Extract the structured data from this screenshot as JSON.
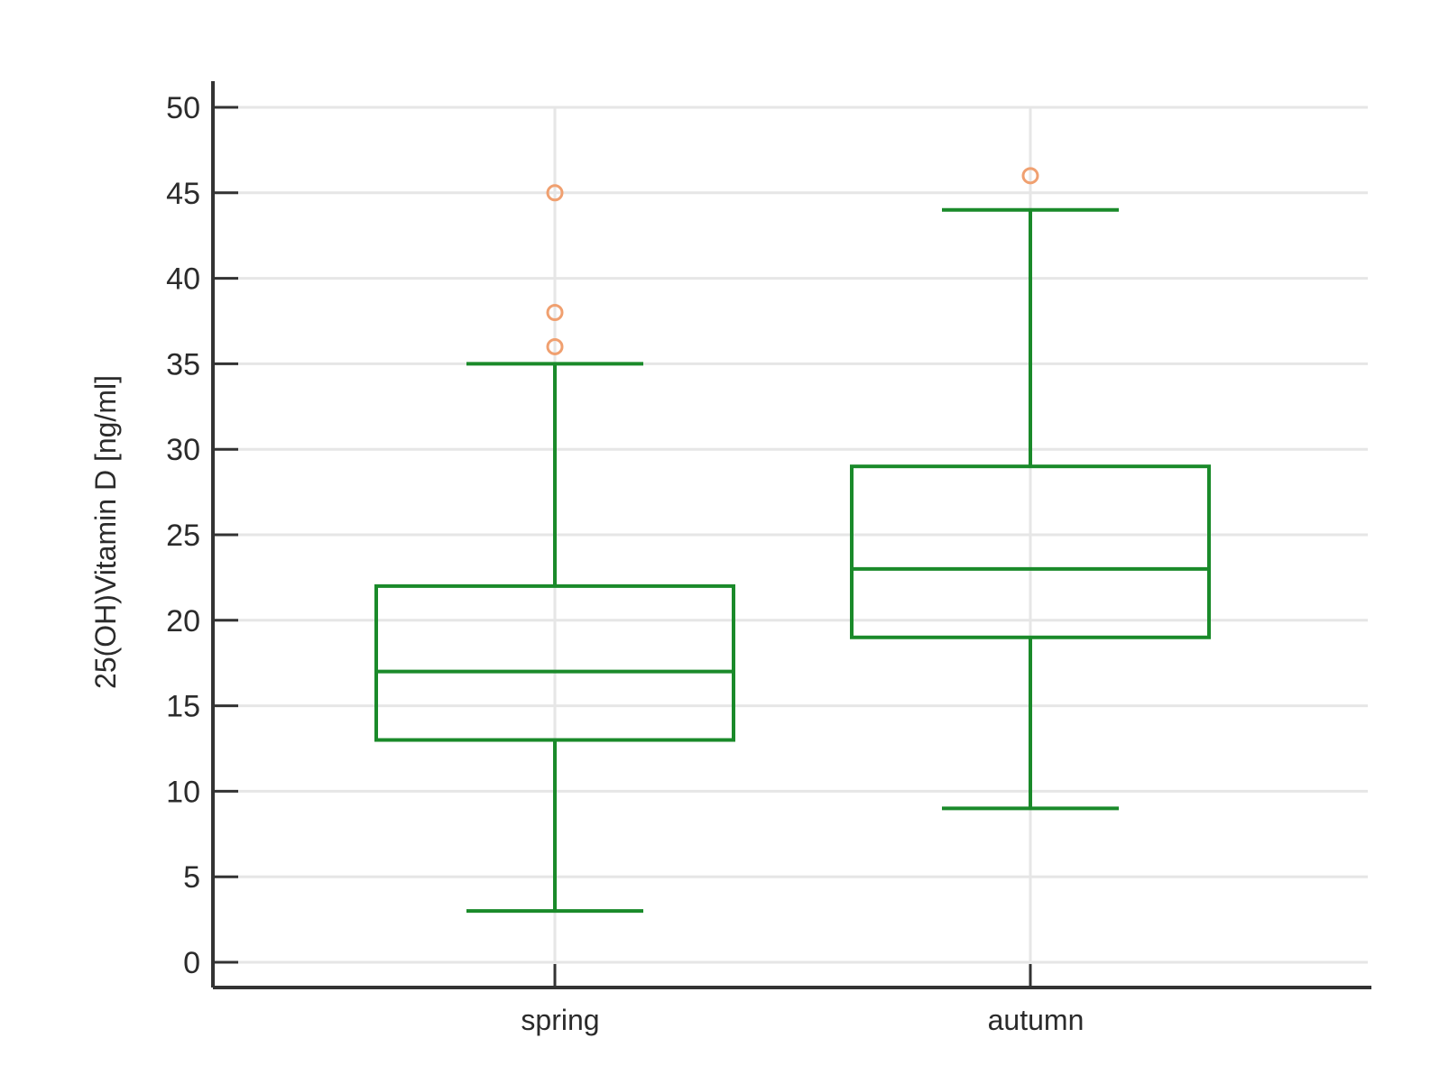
{
  "chart_data": {
    "type": "box",
    "ylabel": "25(OH)Vitamin D [ng/ml]",
    "xlabel": "",
    "ylim": [
      0,
      50
    ],
    "yticks": [
      0,
      5,
      10,
      15,
      20,
      25,
      30,
      35,
      40,
      45,
      50
    ],
    "ytick_labels": [
      "0",
      "5",
      "10",
      "15",
      "20",
      "25",
      "30",
      "35",
      "40",
      "45",
      "50"
    ],
    "categories": [
      "spring",
      "autumn"
    ],
    "grid": true,
    "boxes": [
      {
        "category": "spring",
        "whisker_low": 3,
        "q1": 13,
        "median": 17,
        "q3": 22,
        "whisker_high": 35,
        "outliers": [
          36,
          38,
          45
        ]
      },
      {
        "category": "autumn",
        "whisker_low": 9,
        "q1": 19,
        "median": 23,
        "q3": 29,
        "whisker_high": 44,
        "outliers": [
          46
        ]
      }
    ],
    "colors": {
      "box": "#1a8a2a",
      "outlier": "#f0a070",
      "grid": "#e6e6e6",
      "axis": "#333333"
    }
  }
}
